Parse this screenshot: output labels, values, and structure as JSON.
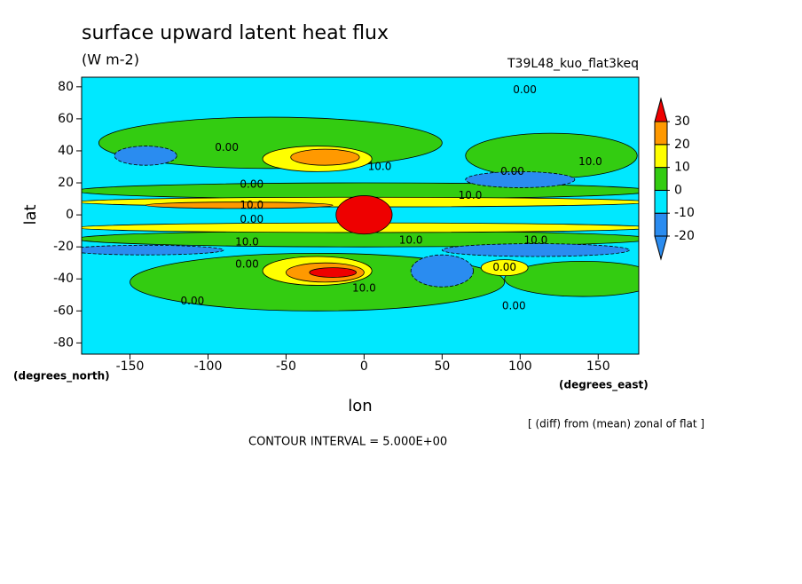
{
  "chart_data": {
    "type": "contour",
    "title": "surface upward latent heat flux",
    "subtitle": "(W m-2)",
    "run_label": "T39L48_kuo_flat3keq",
    "xlabel": "lon",
    "ylabel": "lat",
    "x_units": "(degrees_east)",
    "y_units": "(degrees_north)",
    "note": "[ (diff) from (mean) zonal of flat ]",
    "contour_interval": "CONTOUR INTERVAL = 5.000E+00",
    "xlim": [
      -181,
      176
    ],
    "ylim": [
      -87,
      86
    ],
    "xticks": [
      -150,
      -100,
      -50,
      0,
      50,
      100,
      150
    ],
    "yticks": [
      -80,
      -60,
      -40,
      -20,
      0,
      20,
      40,
      60,
      80
    ],
    "levels": [
      -20,
      -10,
      0,
      10,
      20,
      30
    ],
    "colors": [
      "#2a8cf0",
      "#2a8cf0",
      "#00e8ff",
      "#33cc11",
      "#ffff00",
      "#ff9900",
      "#ee0000"
    ],
    "background_value": -5,
    "features": [
      {
        "lon": -60,
        "lat": 45,
        "dlon": 110,
        "dlat": 16,
        "value": 5
      },
      {
        "lon": 120,
        "lat": 37,
        "dlon": 55,
        "dlat": 14,
        "value": 5
      },
      {
        "lon": -30,
        "lat": -42,
        "dlon": 120,
        "dlat": 18,
        "value": 5
      },
      {
        "lon": 140,
        "lat": -40,
        "dlon": 50,
        "dlat": 11,
        "value": 5
      },
      {
        "lon": 0,
        "lat": 15,
        "dlon": 185,
        "dlat": 5,
        "value": 5
      },
      {
        "lon": 0,
        "lat": -15,
        "dlon": 185,
        "dlat": 5,
        "value": 5
      },
      {
        "lon": -140,
        "lat": 37,
        "dlon": 20,
        "dlat": 6,
        "value": -15
      },
      {
        "lon": 100,
        "lat": 22,
        "dlon": 35,
        "dlat": 5,
        "value": -15
      },
      {
        "lon": 50,
        "lat": -35,
        "dlon": 20,
        "dlat": 10,
        "value": -15
      },
      {
        "lon": 110,
        "lat": -22,
        "dlon": 60,
        "dlat": 4,
        "value": -15
      },
      {
        "lon": -140,
        "lat": -22,
        "dlon": 50,
        "dlat": 3,
        "value": -15
      },
      {
        "lon": -30,
        "lat": 35,
        "dlon": 35,
        "dlat": 8,
        "value": 15
      },
      {
        "lon": -25,
        "lat": 36,
        "dlon": 22,
        "dlat": 5,
        "value": 25
      },
      {
        "lon": -30,
        "lat": -35,
        "dlon": 35,
        "dlat": 9,
        "value": 15
      },
      {
        "lon": -25,
        "lat": -36,
        "dlon": 25,
        "dlat": 6,
        "value": 25
      },
      {
        "lon": -20,
        "lat": -36,
        "dlon": 15,
        "dlat": 3,
        "value": 35
      },
      {
        "lon": 90,
        "lat": -33,
        "dlon": 15,
        "dlat": 5,
        "value": 15
      },
      {
        "lon": 0,
        "lat": 8,
        "dlon": 185,
        "dlat": 3,
        "value": 15
      },
      {
        "lon": 0,
        "lat": -8,
        "dlon": 185,
        "dlat": 3,
        "value": 15
      },
      {
        "lon": -80,
        "lat": 6,
        "dlon": 60,
        "dlat": 2,
        "value": 25
      },
      {
        "lon": 0,
        "lat": 0,
        "dlon": 18,
        "dlat": 12,
        "value": 35
      }
    ],
    "annotations": [
      {
        "text": "0.00",
        "lon": 103,
        "lat": 78
      },
      {
        "text": "0.00",
        "lon": -88,
        "lat": 42
      },
      {
        "text": "0.00",
        "lon": -72,
        "lat": 19
      },
      {
        "text": "10.0",
        "lon": 10,
        "lat": 30
      },
      {
        "text": "10.0",
        "lon": 68,
        "lat": 12
      },
      {
        "text": "0.00",
        "lon": 95,
        "lat": 27
      },
      {
        "text": "10.0",
        "lon": 145,
        "lat": 33
      },
      {
        "text": "10.0",
        "lon": -72,
        "lat": 6
      },
      {
        "text": "0.00",
        "lon": -72,
        "lat": -3
      },
      {
        "text": "10.0",
        "lon": -75,
        "lat": -17
      },
      {
        "text": "0.00",
        "lon": -75,
        "lat": -31
      },
      {
        "text": "10.0",
        "lon": 30,
        "lat": -16
      },
      {
        "text": "10.0",
        "lon": 110,
        "lat": -16
      },
      {
        "text": "0.00",
        "lon": 90,
        "lat": -33
      },
      {
        "text": "10.0",
        "lon": 0,
        "lat": -46
      },
      {
        "text": "0.00",
        "lon": -110,
        "lat": -54
      },
      {
        "text": "0.00",
        "lon": 96,
        "lat": -57
      }
    ]
  }
}
